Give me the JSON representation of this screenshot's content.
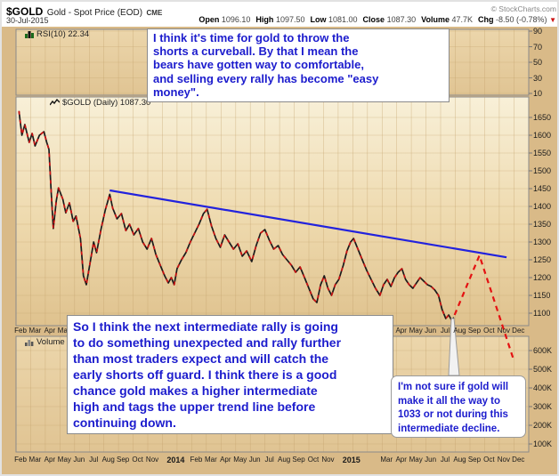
{
  "header": {
    "symbol": "$GOLD",
    "description": "Gold - Spot Price (EOD)",
    "exchange": "CME",
    "copyright": "© StockCharts.com",
    "date": "30-Jul-2015",
    "quote": [
      {
        "label": "Open",
        "value": "1096.10"
      },
      {
        "label": "High",
        "value": "1097.50"
      },
      {
        "label": "Low",
        "value": "1081.00"
      },
      {
        "label": "Close",
        "value": "1087.30"
      },
      {
        "label": "Volume",
        "value": "47.7K"
      },
      {
        "label": "Chg",
        "value": "-8.50 (-0.78%)"
      }
    ],
    "chg_icon": "▼"
  },
  "panels": {
    "rsi": {
      "label": "RSI(10) 22.34",
      "ticks": [
        90,
        70,
        50,
        30,
        10
      ]
    },
    "price": {
      "label": "$GOLD (Daily) 1087.30",
      "ticks": [
        1650,
        1600,
        1550,
        1500,
        1450,
        1400,
        1350,
        1300,
        1250,
        1200,
        1150,
        1100
      ]
    },
    "volume": {
      "label": "Volume 47.7K",
      "ticks": [
        "600K",
        "500K",
        "400K",
        "300K",
        "200K",
        "100K"
      ]
    }
  },
  "axis_months": [
    {
      "t": 0,
      "label": "Feb"
    },
    {
      "t": 1,
      "label": "Mar"
    },
    {
      "t": 2,
      "label": "Apr"
    },
    {
      "t": 3,
      "label": "May"
    },
    {
      "t": 4,
      "label": "Jun"
    },
    {
      "t": 5,
      "label": "Jul"
    },
    {
      "t": 6,
      "label": "Aug"
    },
    {
      "t": 7,
      "label": "Sep"
    },
    {
      "t": 8,
      "label": "Oct"
    },
    {
      "t": 9,
      "label": "Nov"
    },
    {
      "t": 10.6,
      "label": "2014",
      "bold": true
    },
    {
      "t": 12,
      "label": "Feb"
    },
    {
      "t": 13,
      "label": "Mar"
    },
    {
      "t": 14,
      "label": "Apr"
    },
    {
      "t": 15,
      "label": "May"
    },
    {
      "t": 16,
      "label": "Jun"
    },
    {
      "t": 17,
      "label": "Jul"
    },
    {
      "t": 18,
      "label": "Aug"
    },
    {
      "t": 19,
      "label": "Sep"
    },
    {
      "t": 20,
      "label": "Oct"
    },
    {
      "t": 21,
      "label": "Nov"
    },
    {
      "t": 22.6,
      "label": "2015",
      "bold": true
    },
    {
      "t": 25,
      "label": "Mar"
    },
    {
      "t": 26,
      "label": "Apr"
    },
    {
      "t": 27,
      "label": "May"
    },
    {
      "t": 28,
      "label": "Jun"
    },
    {
      "t": 29,
      "label": "Jul"
    },
    {
      "t": 30,
      "label": "Aug"
    },
    {
      "t": 31,
      "label": "Sep"
    },
    {
      "t": 32,
      "label": "Oct"
    },
    {
      "t": 33,
      "label": "Nov"
    },
    {
      "t": 34,
      "label": "Dec"
    }
  ],
  "chart_data": {
    "type": "line",
    "title": "$GOLD Gold - Spot Price (EOD) CME",
    "x_axis": {
      "unit": "months since Feb 2013",
      "range": [
        0,
        35
      ]
    },
    "price_axis": {
      "range_labels": [
        1100,
        1650
      ],
      "step": 50
    },
    "rsi_axis": {
      "range": [
        0,
        100
      ],
      "tick_step": 20,
      "current": 22.34
    },
    "volume_axis": {
      "range_labels": [
        "100K",
        "600K"
      ],
      "current": "47.7K"
    },
    "grid": true,
    "price_series": {
      "name": "$GOLD Daily close",
      "points": [
        [
          0.2,
          1668
        ],
        [
          0.4,
          1600
        ],
        [
          0.6,
          1630
        ],
        [
          0.9,
          1580
        ],
        [
          1.1,
          1605
        ],
        [
          1.3,
          1570
        ],
        [
          1.6,
          1600
        ],
        [
          1.9,
          1610
        ],
        [
          2.1,
          1580
        ],
        [
          2.25,
          1560
        ],
        [
          2.4,
          1440
        ],
        [
          2.55,
          1338
        ],
        [
          2.75,
          1415
        ],
        [
          2.9,
          1452
        ],
        [
          3.2,
          1420
        ],
        [
          3.4,
          1382
        ],
        [
          3.65,
          1410
        ],
        [
          3.9,
          1358
        ],
        [
          4.1,
          1373
        ],
        [
          4.4,
          1310
        ],
        [
          4.6,
          1205
        ],
        [
          4.8,
          1180
        ],
        [
          5.05,
          1240
        ],
        [
          5.3,
          1300
        ],
        [
          5.5,
          1270
        ],
        [
          5.8,
          1335
        ],
        [
          6.1,
          1390
        ],
        [
          6.4,
          1434
        ],
        [
          6.6,
          1395
        ],
        [
          6.9,
          1365
        ],
        [
          7.2,
          1380
        ],
        [
          7.5,
          1332
        ],
        [
          7.75,
          1350
        ],
        [
          8.05,
          1320
        ],
        [
          8.35,
          1338
        ],
        [
          8.65,
          1300
        ],
        [
          8.95,
          1280
        ],
        [
          9.25,
          1310
        ],
        [
          9.55,
          1265
        ],
        [
          9.85,
          1235
        ],
        [
          10.15,
          1205
        ],
        [
          10.4,
          1185
        ],
        [
          10.6,
          1200
        ],
        [
          10.8,
          1180
        ],
        [
          11.0,
          1225
        ],
        [
          11.3,
          1250
        ],
        [
          11.6,
          1270
        ],
        [
          11.9,
          1300
        ],
        [
          12.2,
          1325
        ],
        [
          12.5,
          1350
        ],
        [
          12.8,
          1380
        ],
        [
          13.05,
          1392
        ],
        [
          13.35,
          1345
        ],
        [
          13.65,
          1310
        ],
        [
          13.95,
          1285
        ],
        [
          14.25,
          1320
        ],
        [
          14.55,
          1300
        ],
        [
          14.85,
          1280
        ],
        [
          15.15,
          1295
        ],
        [
          15.45,
          1260
        ],
        [
          15.75,
          1275
        ],
        [
          16.1,
          1245
        ],
        [
          16.4,
          1290
        ],
        [
          16.7,
          1325
        ],
        [
          17.0,
          1335
        ],
        [
          17.3,
          1305
        ],
        [
          17.6,
          1280
        ],
        [
          17.9,
          1290
        ],
        [
          18.2,
          1265
        ],
        [
          18.5,
          1250
        ],
        [
          18.8,
          1235
        ],
        [
          19.1,
          1215
        ],
        [
          19.4,
          1230
        ],
        [
          19.7,
          1200
        ],
        [
          20.0,
          1170
        ],
        [
          20.3,
          1140
        ],
        [
          20.55,
          1130
        ],
        [
          20.8,
          1180
        ],
        [
          21.05,
          1205
        ],
        [
          21.3,
          1170
        ],
        [
          21.55,
          1150
        ],
        [
          21.8,
          1180
        ],
        [
          22.05,
          1195
        ],
        [
          22.35,
          1235
        ],
        [
          22.6,
          1275
        ],
        [
          22.85,
          1300
        ],
        [
          23.05,
          1310
        ],
        [
          23.35,
          1280
        ],
        [
          23.65,
          1250
        ],
        [
          23.95,
          1220
        ],
        [
          24.25,
          1195
        ],
        [
          24.55,
          1170
        ],
        [
          24.85,
          1150
        ],
        [
          25.1,
          1180
        ],
        [
          25.35,
          1195
        ],
        [
          25.6,
          1175
        ],
        [
          25.85,
          1200
        ],
        [
          26.1,
          1215
        ],
        [
          26.35,
          1225
        ],
        [
          26.6,
          1195
        ],
        [
          26.85,
          1180
        ],
        [
          27.1,
          1170
        ],
        [
          27.35,
          1185
        ],
        [
          27.6,
          1200
        ],
        [
          27.85,
          1190
        ],
        [
          28.1,
          1180
        ],
        [
          28.35,
          1175
        ],
        [
          28.6,
          1165
        ],
        [
          28.85,
          1150
        ],
        [
          29.1,
          1110
        ],
        [
          29.35,
          1085
        ],
        [
          29.55,
          1095
        ],
        [
          29.75,
          1080
        ],
        [
          29.9,
          1088
        ]
      ]
    },
    "trendline": {
      "name": "upper downtrend line",
      "from": [
        6.4,
        1445
      ],
      "to": [
        33.5,
        1257
      ]
    },
    "projection": {
      "name": "forecast path (dashed)",
      "points": [
        [
          29.95,
          1095
        ],
        [
          31.65,
          1262
        ],
        [
          34.0,
          967
        ]
      ]
    },
    "legend_position": "none"
  },
  "annotations": {
    "top": {
      "lines": [
        "I think it's time for gold to throw the",
        "shorts a curveball. By that I mean the",
        "bears have gotten way to comfortable,",
        "and selling every rally has become \"easy",
        "money\"."
      ]
    },
    "bottom": {
      "lines": [
        "So I think the next intermediate rally is going",
        "to do something unexpected and rally further",
        "than most traders expect and will catch the",
        "early shorts off guard. I think there is a good",
        "chance gold makes a higher intermediate",
        "high and tags the upper trend line before",
        "continuing down."
      ]
    },
    "callout": {
      "lines": [
        "I'm not sure if gold will",
        "make it all the way to",
        "1033 or not during this",
        "intermediate decline."
      ]
    }
  },
  "colors": {
    "annotation_text": "#1c1ccd",
    "trendline": "#2222dd",
    "projection": "#e41212",
    "candle_up": "#1b1b1b",
    "candle_down": "#cc1111",
    "plot_bg_top": "#f8f0d8",
    "plot_bg_bottom": "#dfc28e",
    "region_bg": "#d9ba88",
    "grid": "#c2a06a"
  }
}
